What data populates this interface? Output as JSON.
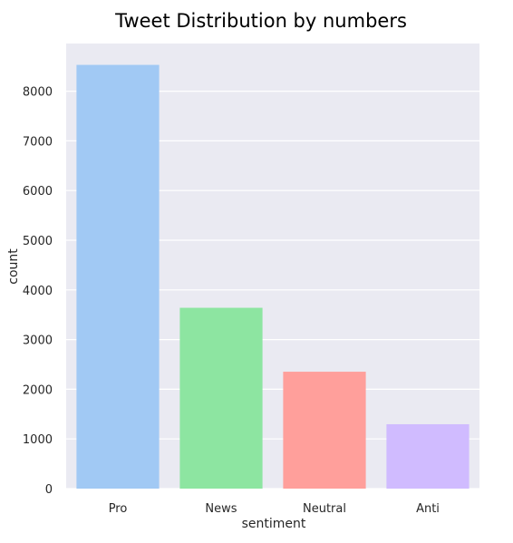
{
  "chart_data": {
    "type": "bar",
    "title": "Tweet Distribution by numbers",
    "xlabel": "sentiment",
    "ylabel": "count",
    "categories": [
      "Pro",
      "News",
      "Neutral",
      "Anti"
    ],
    "values": [
      8530,
      3640,
      2353,
      1296
    ],
    "ylim": [
      0,
      8960
    ],
    "yticks": [
      0,
      1000,
      2000,
      3000,
      4000,
      5000,
      6000,
      7000,
      8000
    ],
    "grid": true,
    "colors": {
      "plot_background": "#eaeaf2",
      "grid": "#ffffff",
      "bars": [
        "#a1c9f4",
        "#8de5a1",
        "#ff9f9b",
        "#d0bbff"
      ]
    }
  }
}
